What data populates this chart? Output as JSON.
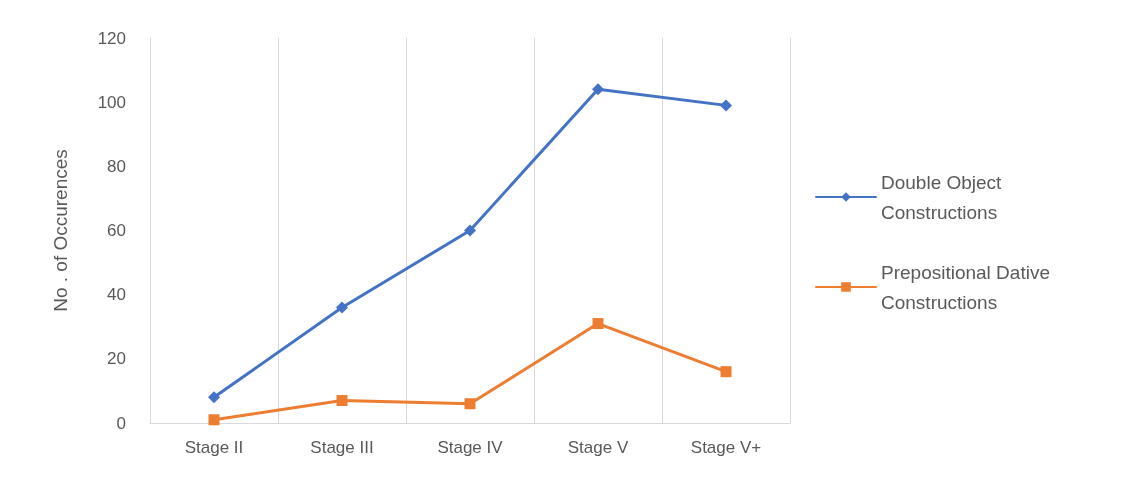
{
  "chart_data": {
    "type": "line",
    "ylabel": "No . of Occurences",
    "categories": [
      "Stage II",
      "Stage III",
      "Stage IV",
      "Stage V",
      "Stage V+"
    ],
    "series": [
      {
        "name": "Double Object Constructions",
        "color": "#4472c4",
        "marker": "diamond",
        "values": [
          8,
          36,
          60,
          104,
          99
        ]
      },
      {
        "name": "Prepositional Dative Constructions",
        "color": "#ed7d31",
        "marker": "square",
        "values": [
          1,
          7,
          6,
          31,
          16
        ]
      }
    ],
    "ylim": [
      0,
      120
    ],
    "yticks": [
      0,
      20,
      40,
      60,
      80,
      100,
      120
    ],
    "grid": "x",
    "legend": "right",
    "line_style": "solid"
  }
}
